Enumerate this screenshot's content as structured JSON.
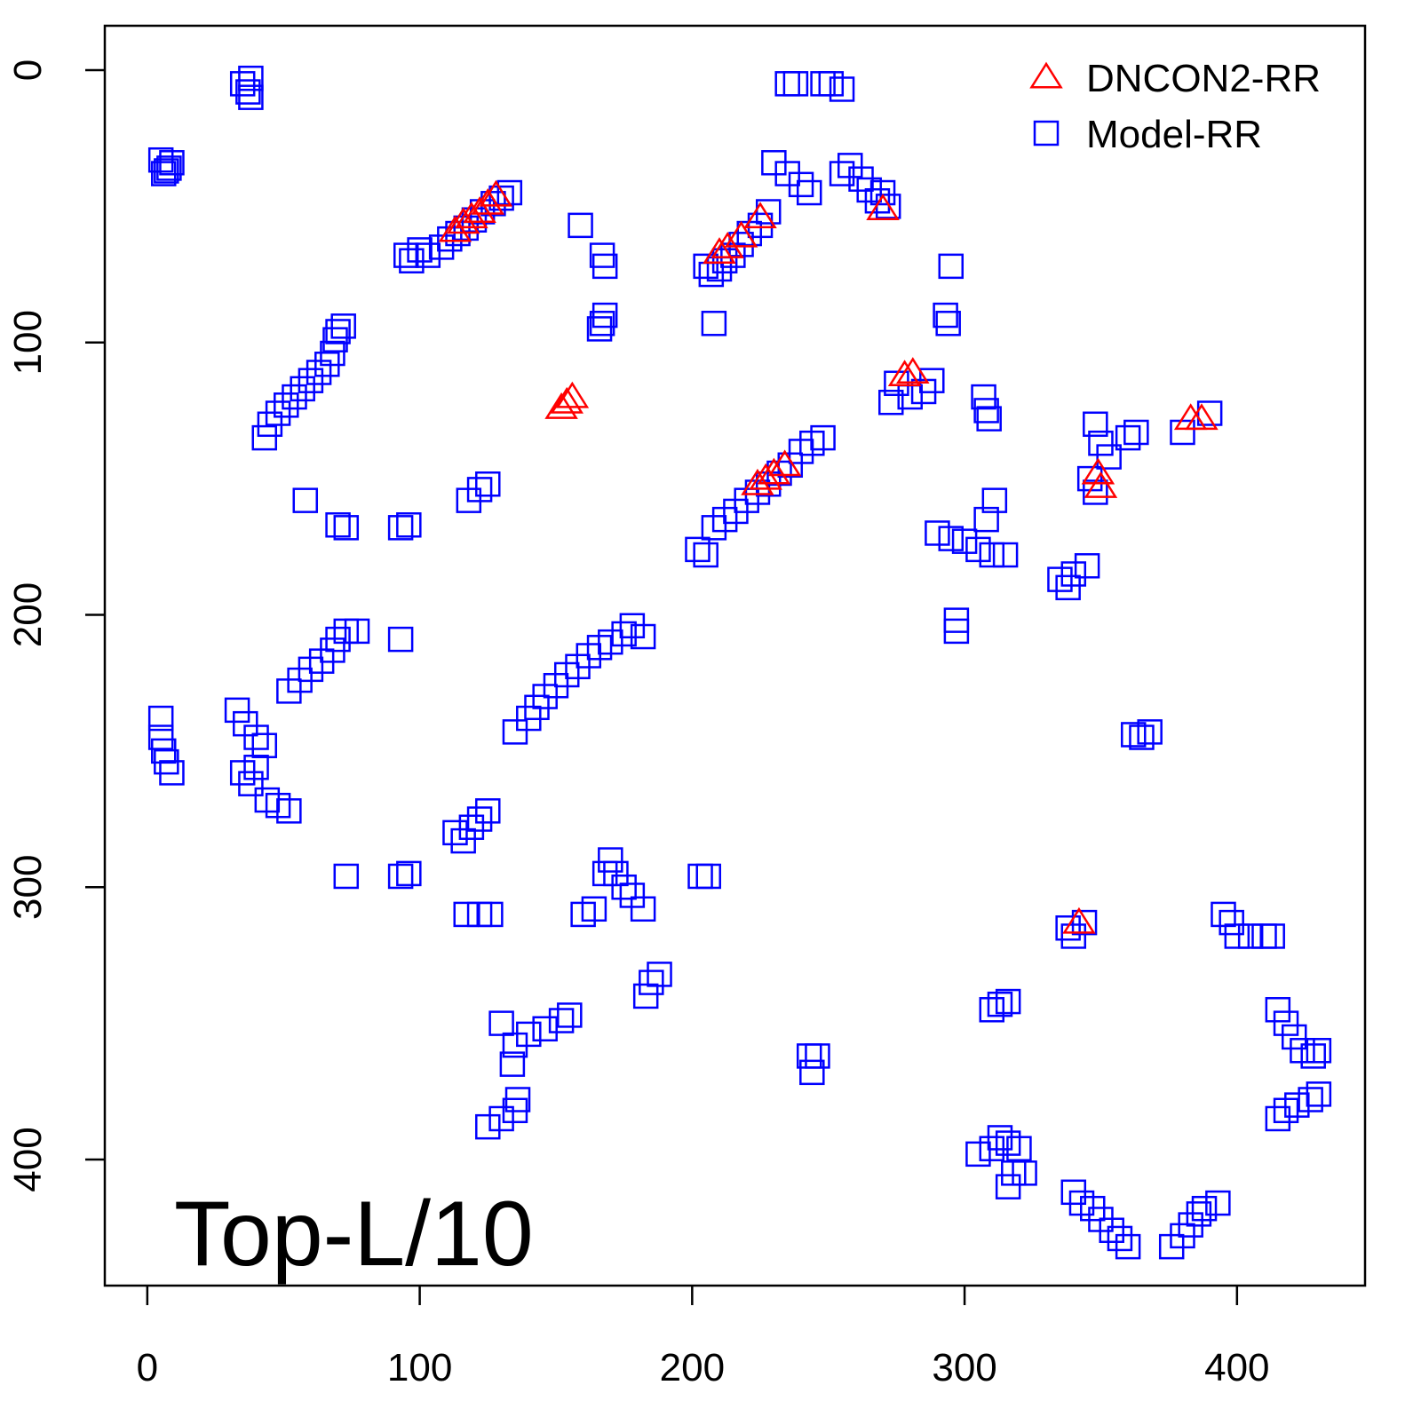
{
  "chart_data": {
    "type": "scatter",
    "annotation": "Top-L/10",
    "xlim": [
      -15.6,
      447
    ],
    "ylim": [
      446.3,
      -16.3
    ],
    "xticks": [
      0,
      100,
      200,
      300,
      400
    ],
    "yticks": [
      0,
      100,
      200,
      300,
      400
    ],
    "legend": "topright",
    "series": [
      {
        "name": "DNCON2-RR",
        "color": "#ff0000",
        "marker": "triangle",
        "x": [
          113,
          116,
          119,
          122,
          125,
          128,
          210,
          213,
          218,
          225,
          270,
          152,
          154,
          156,
          278,
          281,
          224,
          227,
          230,
          234,
          349,
          350,
          342,
          383,
          387
        ],
        "values": [
          59,
          56,
          54,
          52,
          49,
          46,
          67,
          65,
          61,
          54,
          51,
          124,
          122,
          120,
          112,
          111,
          152,
          150,
          148,
          145,
          148,
          153,
          313,
          128,
          128
        ]
      },
      {
        "name": "Model-RR",
        "color": "#0000ff",
        "marker": "square",
        "x": [
          35,
          37,
          38,
          38,
          5,
          7,
          8,
          9,
          6,
          95,
          97,
          100,
          103,
          108,
          111,
          114,
          117,
          120,
          123,
          127,
          130,
          133,
          159,
          167,
          168,
          167,
          168,
          166,
          205,
          207,
          210,
          212,
          215,
          218,
          221,
          225,
          228,
          208,
          235,
          238,
          248,
          251,
          255,
          230,
          235,
          240,
          243,
          255,
          258,
          262,
          265,
          268,
          272,
          270,
          295,
          293,
          294,
          43,
          45,
          48,
          51,
          54,
          57,
          60,
          63,
          66,
          68,
          69,
          70,
          72,
          275,
          280,
          285,
          288,
          273,
          307,
          308,
          309,
          348,
          350,
          353,
          360,
          363,
          380,
          390,
          346,
          348,
          58,
          70,
          73,
          93,
          96,
          118,
          122,
          125,
          202,
          205,
          208,
          212,
          216,
          220,
          224,
          228,
          232,
          236,
          240,
          244,
          248,
          290,
          295,
          300,
          305,
          310,
          315,
          308,
          311,
          335,
          340,
          345,
          338,
          297,
          297,
          135,
          140,
          143,
          146,
          150,
          154,
          158,
          162,
          166,
          170,
          175,
          178,
          182,
          52,
          56,
          60,
          64,
          68,
          70,
          73,
          77,
          93,
          5,
          6,
          7,
          9,
          5,
          33,
          36,
          40,
          43,
          35,
          38,
          40,
          44,
          48,
          52,
          362,
          365,
          368,
          113,
          116,
          119,
          122,
          125,
          73,
          93,
          96,
          170,
          172,
          175,
          178,
          182,
          160,
          164,
          168,
          117,
          122,
          126,
          203,
          206,
          395,
          398,
          400,
          405,
          410,
          413,
          185,
          188,
          183,
          130,
          135,
          140,
          146,
          152,
          155,
          134,
          243,
          246,
          244,
          310,
          313,
          316,
          125,
          130,
          135,
          136,
          415,
          418,
          421,
          424,
          428,
          430,
          415,
          418,
          422,
          427,
          430,
          305,
          310,
          313,
          316,
          320,
          318,
          316,
          322,
          340,
          343,
          347,
          350,
          354,
          357,
          360,
          376,
          380,
          383,
          386,
          388,
          393,
          338,
          340,
          344
        ],
        "values": [
          5,
          8,
          3,
          10,
          33,
          37,
          36,
          34,
          38,
          68,
          70,
          66,
          68,
          65,
          62,
          60,
          58,
          55,
          52,
          49,
          47,
          45,
          57,
          68,
          72,
          93,
          90,
          95,
          72,
          75,
          73,
          70,
          68,
          64,
          60,
          57,
          52,
          93,
          5,
          5,
          5,
          5,
          7,
          34,
          38,
          42,
          45,
          38,
          35,
          40,
          44,
          48,
          50,
          45,
          72,
          90,
          93,
          135,
          130,
          126,
          123,
          120,
          117,
          114,
          111,
          108,
          104,
          99,
          96,
          94,
          115,
          120,
          118,
          114,
          122,
          120,
          125,
          128,
          130,
          137,
          142,
          135,
          133,
          133,
          126,
          150,
          155,
          158,
          167,
          168,
          168,
          167,
          158,
          154,
          152,
          176,
          178,
          168,
          165,
          162,
          158,
          155,
          152,
          148,
          145,
          140,
          137,
          135,
          170,
          172,
          173,
          176,
          178,
          178,
          165,
          158,
          187,
          185,
          182,
          190,
          202,
          206,
          243,
          238,
          234,
          230,
          226,
          222,
          219,
          215,
          212,
          210,
          207,
          204,
          208,
          228,
          224,
          220,
          217,
          213,
          209,
          206,
          206,
          209,
          238,
          250,
          254,
          258,
          245,
          235,
          240,
          245,
          248,
          258,
          262,
          256,
          268,
          270,
          272,
          244,
          245,
          243,
          280,
          283,
          278,
          275,
          272,
          296,
          296,
          295,
          290,
          295,
          300,
          303,
          308,
          310,
          308,
          295,
          310,
          310,
          310,
          296,
          296,
          310,
          313,
          318,
          318,
          318,
          318,
          335,
          332,
          340,
          350,
          358,
          354,
          352,
          349,
          347,
          365,
          362,
          362,
          368,
          345,
          343,
          342,
          388,
          385,
          382,
          378,
          345,
          350,
          355,
          360,
          362,
          360,
          385,
          382,
          380,
          378,
          376,
          398,
          396,
          392,
          394,
          396,
          405,
          410,
          405,
          412,
          416,
          418,
          422,
          426,
          429,
          432,
          432,
          428,
          424,
          420,
          418,
          416,
          315,
          318,
          313
        ]
      }
    ]
  }
}
